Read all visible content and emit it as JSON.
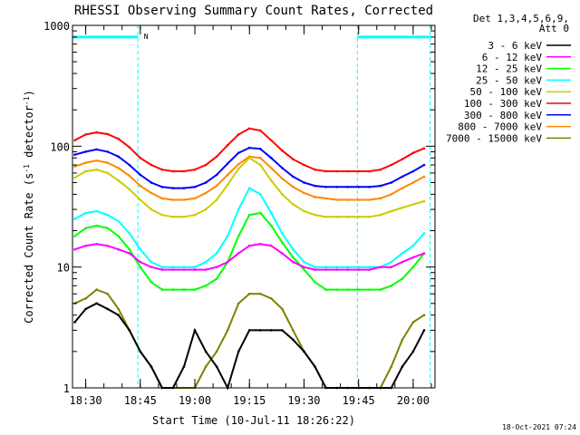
{
  "chart_data": {
    "type": "line",
    "title": "RHESSI Observing Summary Count Rates, Corrected",
    "xlabel": "Start Time (10-Jul-11 18:26:22)",
    "ylabel": "Corrected Count Rate (s-1 detector-1)",
    "yscale": "log",
    "ylim": [
      1,
      1000
    ],
    "yticks": [
      {
        "value": 1,
        "label": "1"
      },
      {
        "value": 10,
        "label": "10"
      },
      {
        "value": 100,
        "label": "100"
      },
      {
        "value": 1000,
        "label": "1000"
      }
    ],
    "xlim": [
      "18:26:22",
      "20:06:00"
    ],
    "xticks": [
      {
        "value": "18:30",
        "label": "18:30"
      },
      {
        "value": "18:45",
        "label": "18:45"
      },
      {
        "value": "19:00",
        "label": "19:00"
      },
      {
        "value": "19:15",
        "label": "19:15"
      },
      {
        "value": "19:30",
        "label": "19:30"
      },
      {
        "value": "19:45",
        "label": "19:45"
      },
      {
        "value": "20:00",
        "label": "20:00"
      }
    ],
    "legend_header": [
      "Det 1,3,4,5,6,9,",
      "Att 0"
    ],
    "legend_position": "right",
    "grid": false,
    "annotations": [
      {
        "text": "N",
        "x": "18:45",
        "y": 800,
        "color": "#00ffff"
      }
    ],
    "night_bars": [
      {
        "start": "18:26:22",
        "end": "18:44:20",
        "y": 800
      },
      {
        "start": "19:44:40",
        "end": "20:04:40",
        "y": 800
      }
    ],
    "vertical_markers": [
      "18:26:22",
      "18:44:20",
      "19:44:40",
      "20:04:40"
    ],
    "marker_color": "#00ffff",
    "series": [
      {
        "name": "3 - 6 keV",
        "color": "#000000",
        "x": [
          "18:27",
          "18:30",
          "18:33",
          "18:36",
          "18:39",
          "18:42",
          "18:45",
          "18:48",
          "18:51",
          "18:54",
          "18:57",
          "19:00",
          "19:03",
          "19:06",
          "19:09",
          "19:12",
          "19:15",
          "19:18",
          "19:21",
          "19:24",
          "19:27",
          "19:30",
          "19:33",
          "19:36",
          "19:39",
          "19:42",
          "19:45",
          "19:48",
          "19:51",
          "19:54",
          "19:57",
          "20:00",
          "20:03"
        ],
        "values": [
          3.5,
          4.5,
          5,
          4.5,
          4,
          3,
          2,
          1.5,
          1,
          1,
          1.5,
          3,
          2,
          1.5,
          1,
          2,
          3,
          3,
          3,
          3,
          2.5,
          2,
          1.5,
          1,
          1,
          1,
          1,
          1,
          1,
          1,
          1.5,
          2,
          3
        ]
      },
      {
        "name": "6 - 12 keV",
        "color": "#ff00ff",
        "x": [
          "18:27",
          "18:30",
          "18:33",
          "18:36",
          "18:39",
          "18:42",
          "18:45",
          "18:48",
          "18:51",
          "18:54",
          "18:57",
          "19:00",
          "19:03",
          "19:06",
          "19:09",
          "19:12",
          "19:15",
          "19:18",
          "19:21",
          "19:24",
          "19:27",
          "19:30",
          "19:33",
          "19:36",
          "19:39",
          "19:42",
          "19:45",
          "19:48",
          "19:51",
          "19:54",
          "19:57",
          "20:00",
          "20:03"
        ],
        "values": [
          14,
          15,
          15.5,
          15,
          14,
          13,
          11,
          10,
          9.5,
          9.5,
          9.5,
          9.5,
          9.5,
          10,
          11,
          13,
          15,
          15.5,
          15,
          13,
          11,
          10,
          9.5,
          9.5,
          9.5,
          9.5,
          9.5,
          9.5,
          10,
          10,
          11,
          12,
          13
        ]
      },
      {
        "name": "12 - 25 keV",
        "color": "#00ff00",
        "x": [
          "18:27",
          "18:30",
          "18:33",
          "18:36",
          "18:39",
          "18:42",
          "18:45",
          "18:48",
          "18:51",
          "18:54",
          "18:57",
          "19:00",
          "19:03",
          "19:06",
          "19:09",
          "19:12",
          "19:15",
          "19:18",
          "19:21",
          "19:24",
          "19:27",
          "19:30",
          "19:33",
          "19:36",
          "19:39",
          "19:42",
          "19:45",
          "19:48",
          "19:51",
          "19:54",
          "19:57",
          "20:00",
          "20:03"
        ],
        "values": [
          18,
          21,
          22,
          21,
          18,
          14,
          10,
          7.5,
          6.5,
          6.5,
          6.5,
          6.5,
          7,
          8,
          11,
          18,
          27,
          28,
          22,
          16,
          12,
          9.5,
          7.5,
          6.5,
          6.5,
          6.5,
          6.5,
          6.5,
          6.5,
          7,
          8,
          10,
          13
        ]
      },
      {
        "name": "25 - 50 keV",
        "color": "#00ffff",
        "x": [
          "18:27",
          "18:30",
          "18:33",
          "18:36",
          "18:39",
          "18:42",
          "18:45",
          "18:48",
          "18:51",
          "18:54",
          "18:57",
          "19:00",
          "19:03",
          "19:06",
          "19:09",
          "19:12",
          "19:15",
          "19:18",
          "19:21",
          "19:24",
          "19:27",
          "19:30",
          "19:33",
          "19:36",
          "19:39",
          "19:42",
          "19:45",
          "19:48",
          "19:51",
          "19:54",
          "19:57",
          "20:00",
          "20:03"
        ],
        "values": [
          25,
          28,
          29,
          27,
          24,
          19,
          14,
          11,
          10,
          10,
          10,
          10,
          11,
          13,
          18,
          30,
          45,
          40,
          28,
          19,
          14,
          11,
          10,
          10,
          10,
          10,
          10,
          10,
          10,
          11,
          13,
          15,
          19
        ]
      },
      {
        "name": "50 - 100 keV",
        "color": "#cccc00",
        "x": [
          "18:27",
          "18:30",
          "18:33",
          "18:36",
          "18:39",
          "18:42",
          "18:45",
          "18:48",
          "18:51",
          "18:54",
          "18:57",
          "19:00",
          "19:03",
          "19:06",
          "19:09",
          "19:12",
          "19:15",
          "19:18",
          "19:21",
          "19:24",
          "19:27",
          "19:30",
          "19:33",
          "19:36",
          "19:39",
          "19:42",
          "19:45",
          "19:48",
          "19:51",
          "19:54",
          "19:57",
          "20:00",
          "20:03"
        ],
        "values": [
          55,
          62,
          64,
          60,
          52,
          44,
          36,
          30,
          27,
          26,
          26,
          27,
          30,
          36,
          48,
          65,
          80,
          70,
          52,
          40,
          33,
          29,
          27,
          26,
          26,
          26,
          26,
          26,
          27,
          29,
          31,
          33,
          35
        ]
      },
      {
        "name": "100 - 300 keV",
        "color": "#ff0000",
        "x": [
          "18:27",
          "18:30",
          "18:33",
          "18:36",
          "18:39",
          "18:42",
          "18:45",
          "18:48",
          "18:51",
          "18:54",
          "18:57",
          "19:00",
          "19:03",
          "19:06",
          "19:09",
          "19:12",
          "19:15",
          "19:18",
          "19:21",
          "19:24",
          "19:27",
          "19:30",
          "19:33",
          "19:36",
          "19:39",
          "19:42",
          "19:45",
          "19:48",
          "19:51",
          "19:54",
          "19:57",
          "20:00",
          "20:03"
        ],
        "values": [
          112,
          125,
          130,
          126,
          115,
          98,
          80,
          70,
          64,
          62,
          62,
          64,
          70,
          82,
          102,
          125,
          140,
          135,
          112,
          92,
          78,
          70,
          64,
          62,
          62,
          62,
          62,
          62,
          64,
          70,
          78,
          88,
          96
        ]
      },
      {
        "name": "300 - 800 keV",
        "color": "#0000ff",
        "x": [
          "18:27",
          "18:30",
          "18:33",
          "18:36",
          "18:39",
          "18:42",
          "18:45",
          "18:48",
          "18:51",
          "18:54",
          "18:57",
          "19:00",
          "19:03",
          "19:06",
          "19:09",
          "19:12",
          "19:15",
          "19:18",
          "19:21",
          "19:24",
          "19:27",
          "19:30",
          "19:33",
          "19:36",
          "19:39",
          "19:42",
          "19:45",
          "19:48",
          "19:51",
          "19:54",
          "19:57",
          "20:00",
          "20:03"
        ],
        "values": [
          85,
          90,
          94,
          90,
          82,
          70,
          58,
          50,
          46,
          45,
          45,
          46,
          50,
          58,
          72,
          88,
          97,
          95,
          80,
          66,
          56,
          50,
          47,
          46,
          46,
          46,
          46,
          46,
          47,
          50,
          56,
          62,
          70
        ]
      },
      {
        "name": "800 - 7000 keV",
        "color": "#ff8800",
        "x": [
          "18:27",
          "18:30",
          "18:33",
          "18:36",
          "18:39",
          "18:42",
          "18:45",
          "18:48",
          "18:51",
          "18:54",
          "18:57",
          "19:00",
          "19:03",
          "19:06",
          "19:09",
          "19:12",
          "19:15",
          "19:18",
          "19:21",
          "19:24",
          "19:27",
          "19:30",
          "19:33",
          "19:36",
          "19:39",
          "19:42",
          "19:45",
          "19:48",
          "19:51",
          "19:54",
          "19:57",
          "20:00",
          "20:03"
        ],
        "values": [
          68,
          73,
          76,
          73,
          66,
          57,
          47,
          41,
          37,
          36,
          36,
          37,
          41,
          47,
          58,
          71,
          82,
          80,
          66,
          54,
          46,
          41,
          38,
          37,
          36,
          36,
          36,
          36,
          37,
          40,
          45,
          50,
          56
        ]
      },
      {
        "name": "7000 - 15000 keV",
        "color": "#808000",
        "x": [
          "18:27",
          "18:30",
          "18:33",
          "18:36",
          "18:39",
          "18:42",
          "18:45",
          "18:48",
          "18:51",
          "18:54",
          "18:57",
          "19:00",
          "19:03",
          "19:06",
          "19:09",
          "19:12",
          "19:15",
          "19:18",
          "19:21",
          "19:24",
          "19:27",
          "19:30",
          "19:33",
          "19:36",
          "19:39",
          "19:42",
          "19:45",
          "19:48",
          "19:51",
          "19:54",
          "19:57",
          "20:00",
          "20:03"
        ],
        "values": [
          5,
          5.5,
          6.5,
          6,
          4.5,
          3,
          2,
          1.5,
          1,
          1,
          1,
          1,
          1.5,
          2,
          3,
          5,
          6,
          6,
          5.5,
          4.5,
          3,
          2,
          1.5,
          1,
          1,
          1,
          1,
          1,
          1,
          1.5,
          2.5,
          3.5,
          4
        ]
      }
    ]
  },
  "timestamp": "18-Oct-2021 07:24"
}
